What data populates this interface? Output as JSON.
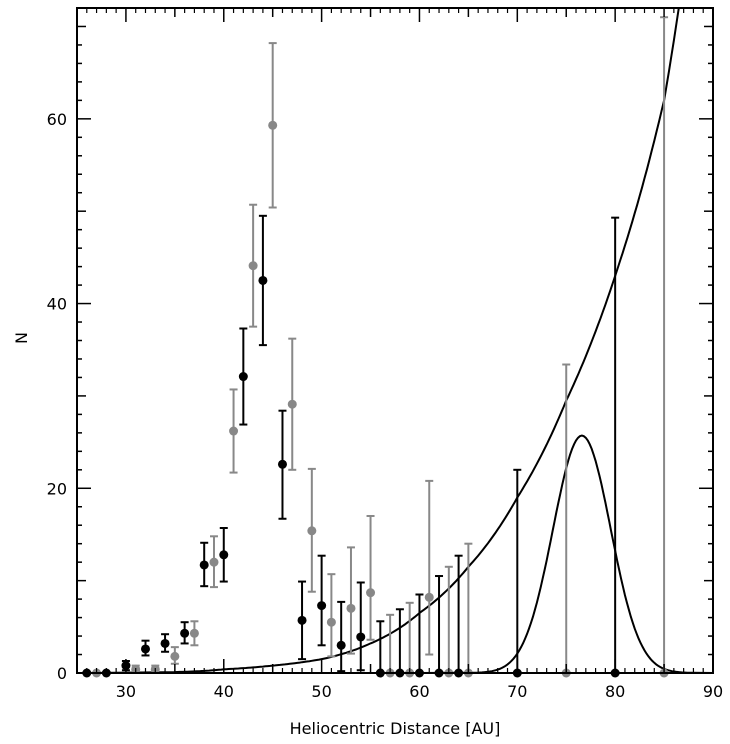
{
  "chart_data": {
    "type": "scatter",
    "title": "",
    "xlabel": "Heliocentric Distance [AU]",
    "ylabel": "N",
    "xlim": [
      25,
      90
    ],
    "ylim": [
      0,
      72
    ],
    "x_ticks": [
      30,
      40,
      50,
      60,
      70,
      80,
      90
    ],
    "y_ticks": [
      0,
      20,
      40,
      60
    ],
    "colors": {
      "black_series": "#000000",
      "gray_series": "#888888",
      "curve": "#000000"
    },
    "series": [
      {
        "color": "black",
        "points": [
          {
            "x": 26,
            "y": 0,
            "lo": 0,
            "hi": 0
          },
          {
            "x": 28,
            "y": 0,
            "lo": 0,
            "hi": 0
          },
          {
            "x": 30,
            "y": 0.8,
            "lo": 0.3,
            "hi": 1.3
          },
          {
            "x": 32,
            "y": 2.6,
            "lo": 1.9,
            "hi": 3.5
          },
          {
            "x": 34,
            "y": 3.2,
            "lo": 2.3,
            "hi": 4.2
          },
          {
            "x": 36,
            "y": 4.3,
            "lo": 3.2,
            "hi": 5.5
          },
          {
            "x": 38,
            "y": 11.7,
            "lo": 9.4,
            "hi": 14.1
          },
          {
            "x": 40,
            "y": 12.8,
            "lo": 9.9,
            "hi": 15.7
          },
          {
            "x": 42,
            "y": 32.1,
            "lo": 26.9,
            "hi": 37.3
          },
          {
            "x": 44,
            "y": 42.5,
            "lo": 35.5,
            "hi": 49.5
          },
          {
            "x": 46,
            "y": 22.6,
            "lo": 16.7,
            "hi": 28.4
          },
          {
            "x": 48,
            "y": 5.7,
            "lo": 1.5,
            "hi": 9.9
          },
          {
            "x": 50,
            "y": 7.3,
            "lo": 3.0,
            "hi": 12.7
          },
          {
            "x": 52,
            "y": 3.0,
            "lo": 0.2,
            "hi": 7.7
          },
          {
            "x": 54,
            "y": 3.9,
            "lo": 0.3,
            "hi": 9.8
          },
          {
            "x": 56,
            "y": 0,
            "lo": 0,
            "hi": 5.6
          },
          {
            "x": 58,
            "y": 0,
            "lo": 0,
            "hi": 6.9
          },
          {
            "x": 60,
            "y": 0,
            "lo": 0,
            "hi": 8.5
          },
          {
            "x": 62,
            "y": 0,
            "lo": 0,
            "hi": 10.5
          },
          {
            "x": 64,
            "y": 0,
            "lo": 0,
            "hi": 12.7
          },
          {
            "x": 70,
            "y": 0,
            "lo": 0,
            "hi": 22.0
          },
          {
            "x": 80,
            "y": 0,
            "lo": 0,
            "hi": 49.3
          }
        ]
      },
      {
        "color": "gray",
        "points": [
          {
            "x": 27,
            "y": 0,
            "lo": 0,
            "hi": 0
          },
          {
            "x": 31,
            "y": 0.4,
            "lo": 0.1,
            "hi": 0.8
          },
          {
            "x": 33,
            "y": 0.4,
            "lo": 0.1,
            "hi": 0.8
          },
          {
            "x": 35,
            "y": 1.8,
            "lo": 1.0,
            "hi": 2.8
          },
          {
            "x": 37,
            "y": 4.3,
            "lo": 3.0,
            "hi": 5.6
          },
          {
            "x": 39,
            "y": 12.0,
            "lo": 9.3,
            "hi": 14.8
          },
          {
            "x": 41,
            "y": 26.2,
            "lo": 21.7,
            "hi": 30.7
          },
          {
            "x": 43,
            "y": 44.1,
            "lo": 37.5,
            "hi": 50.7
          },
          {
            "x": 45,
            "y": 59.3,
            "lo": 50.4,
            "hi": 68.2
          },
          {
            "x": 47,
            "y": 29.1,
            "lo": 22.0,
            "hi": 36.2
          },
          {
            "x": 49,
            "y": 15.4,
            "lo": 8.8,
            "hi": 22.1
          },
          {
            "x": 51,
            "y": 5.5,
            "lo": 1.8,
            "hi": 10.7
          },
          {
            "x": 53,
            "y": 7.0,
            "lo": 2.1,
            "hi": 13.6
          },
          {
            "x": 55,
            "y": 8.7,
            "lo": 3.6,
            "hi": 17.0
          },
          {
            "x": 57,
            "y": 0,
            "lo": 0,
            "hi": 6.3
          },
          {
            "x": 59,
            "y": 0,
            "lo": 0,
            "hi": 7.6
          },
          {
            "x": 61,
            "y": 8.2,
            "lo": 2.0,
            "hi": 20.8
          },
          {
            "x": 63,
            "y": 0,
            "lo": 0,
            "hi": 11.5
          },
          {
            "x": 65,
            "y": 0,
            "lo": 0,
            "hi": 14.0
          },
          {
            "x": 75,
            "y": 0,
            "lo": 0,
            "hi": 33.4
          },
          {
            "x": 85,
            "y": 0,
            "lo": 0,
            "hi": 71.0
          }
        ]
      }
    ],
    "curves": [
      {
        "kind": "exponential",
        "x": [
          35,
          40,
          45,
          50,
          55,
          60,
          65,
          70,
          75,
          80,
          85,
          86.5
        ],
        "y": [
          0.1,
          0.4,
          0.8,
          1.5,
          3.2,
          6.5,
          11.5,
          19.0,
          29.5,
          43.0,
          62.0,
          72.0
        ]
      },
      {
        "kind": "gaussian",
        "x": [
          67,
          68,
          69,
          70,
          71,
          72,
          73,
          74,
          75,
          76,
          76.5,
          77,
          78,
          79,
          80,
          81,
          82,
          83,
          84,
          85,
          86
        ],
        "y": [
          0,
          0.2,
          0.6,
          1.6,
          3.4,
          6.4,
          10.6,
          15.5,
          20.5,
          24.5,
          25.7,
          25.3,
          22.8,
          18.2,
          13.0,
          8.3,
          4.7,
          2.3,
          0.9,
          0.2,
          0
        ]
      }
    ]
  }
}
